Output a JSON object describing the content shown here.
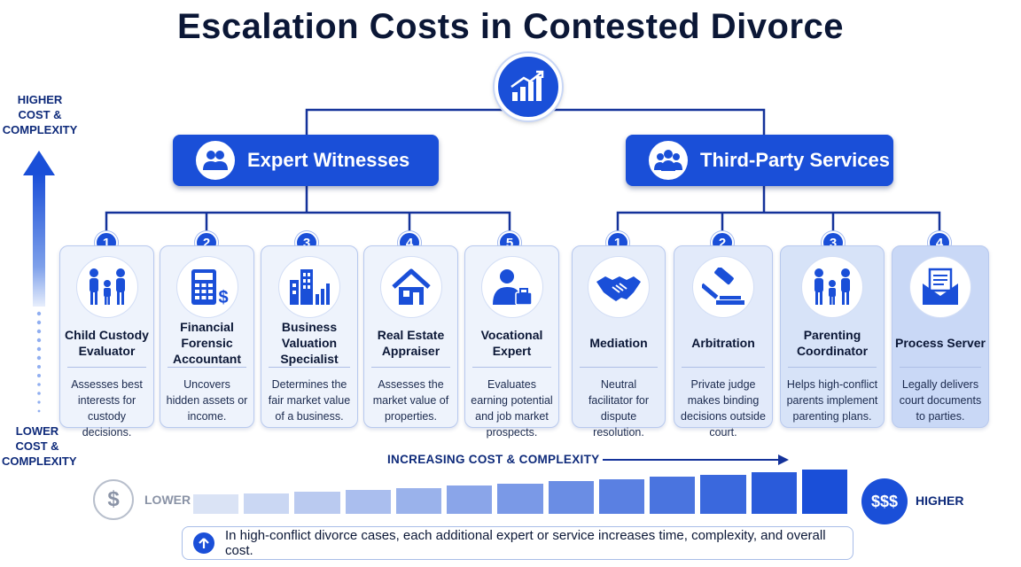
{
  "title": "Escalation Costs in Contested Divorce",
  "axis": {
    "high_label": "HIGHER COST & COMPLEXITY",
    "low_label": "LOWER COST & COMPLEXITY"
  },
  "categories": [
    {
      "label": "Expert Witnesses",
      "icon": "people-icon"
    },
    {
      "label": "Third-Party Services",
      "icon": "group-icon"
    }
  ],
  "expert_witnesses": [
    {
      "number": "1",
      "title": "Child Custody Evaluator",
      "description": "Assesses best interests for custody decisions.",
      "icon": "family-icon"
    },
    {
      "number": "2",
      "title": "Financial Forensic Accountant",
      "description": "Uncovers hidden assets or income.",
      "icon": "calculator-icon"
    },
    {
      "number": "3",
      "title": "Business Valuation Specialist",
      "description": "Determines the fair market value of a business.",
      "icon": "buildings-chart-icon"
    },
    {
      "number": "4",
      "title": "Real Estate Appraiser",
      "description": "Assesses the market value of properties.",
      "icon": "house-icon"
    },
    {
      "number": "5",
      "title": "Vocational Expert",
      "description": "Evaluates earning potential and job market prospects.",
      "icon": "person-briefcase-icon"
    }
  ],
  "third_party_services": [
    {
      "number": "1",
      "title": "Mediation",
      "description": "Neutral facilitator for dispute resolution.",
      "icon": "handshake-icon"
    },
    {
      "number": "2",
      "title": "Arbitration",
      "description": "Private judge makes binding decisions outside court.",
      "icon": "gavel-icon"
    },
    {
      "number": "3",
      "title": "Parenting Coordinator",
      "description": "Helps high-conflict parents implement parenting plans.",
      "icon": "family-icon"
    },
    {
      "number": "4",
      "title": "Process Server",
      "description": "Legally delivers court documents to parties.",
      "icon": "envelope-document-icon"
    }
  ],
  "scale": {
    "title": "INCREASING COST  &  COMPLEXITY",
    "low_symbol": "$",
    "low_label": "LOWER",
    "high_symbol": "$$$",
    "high_label": "HIGHER",
    "segments": 13
  },
  "footer": "In high-conflict divorce cases, each additional expert or service increases time, complexity, and overall cost.",
  "colors": {
    "primary": "#1a4fd8",
    "dark_text": "#0b1736",
    "card_light": "#eef3fc",
    "card_dark": "#c9d8f6"
  }
}
